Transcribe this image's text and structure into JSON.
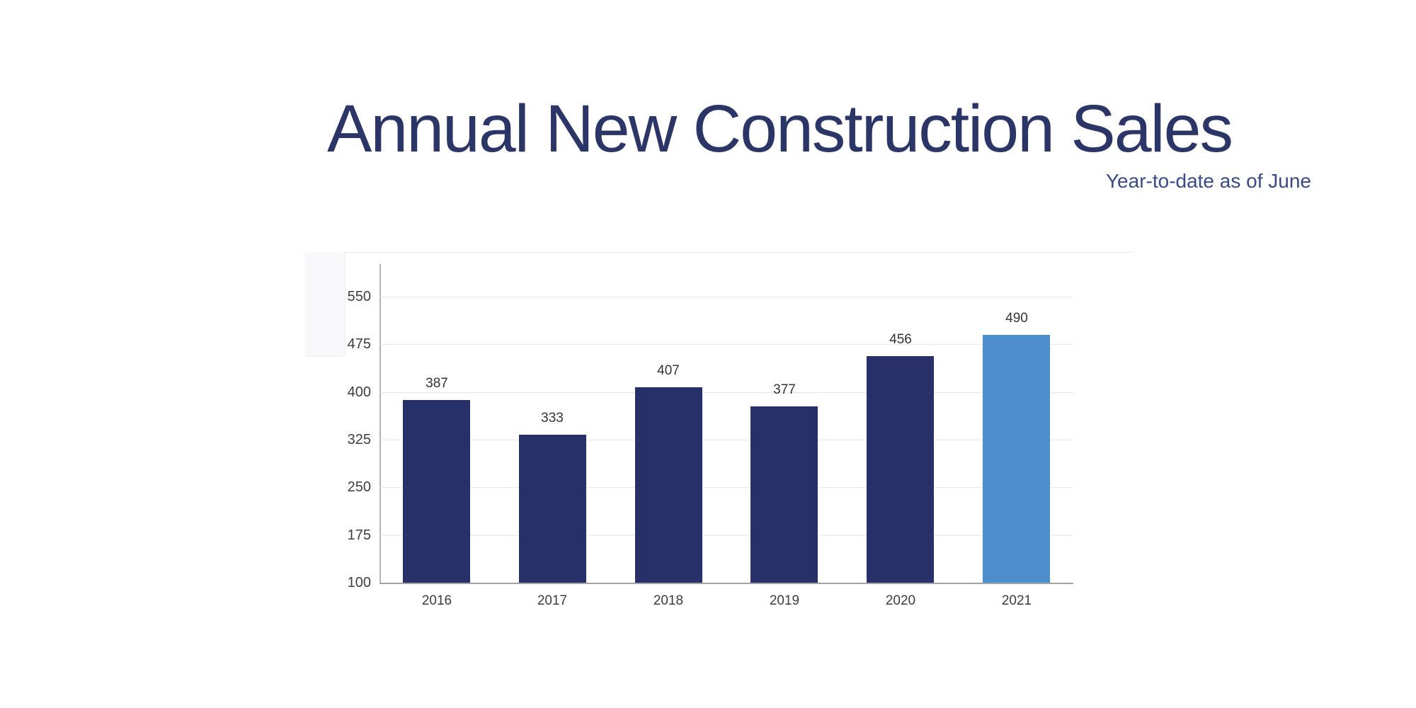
{
  "header": {
    "title": "Annual New Construction Sales",
    "subtitle": "Year-to-date as of June"
  },
  "colors": {
    "title_text": "#2b3566",
    "subtitle_text": "#3c4a82",
    "bar_default": "#28306a",
    "bar_highlight": "#4b8ecb",
    "gridline": "#e8e9f0",
    "axis_line": "#a2a2a8",
    "tick_text": "#3d3d3f",
    "value_label_text": "#343434"
  },
  "chart_data": {
    "type": "bar",
    "title": "Annual New Construction Sales",
    "subtitle": "Year-to-date as of June",
    "categories": [
      "2016",
      "2017",
      "2018",
      "2019",
      "2020",
      "2021"
    ],
    "values": [
      387,
      333,
      407,
      377,
      456,
      490
    ],
    "value_labels_shown": true,
    "xlabel": "",
    "ylabel": "",
    "ylim": [
      100,
      550
    ],
    "yticks": [
      100,
      175,
      250,
      325,
      400,
      475,
      550
    ],
    "grid": "horizontal",
    "legend": "none",
    "highlight_category": "2021",
    "bar_color": "#28306a",
    "highlight_color": "#4b8ecb"
  }
}
